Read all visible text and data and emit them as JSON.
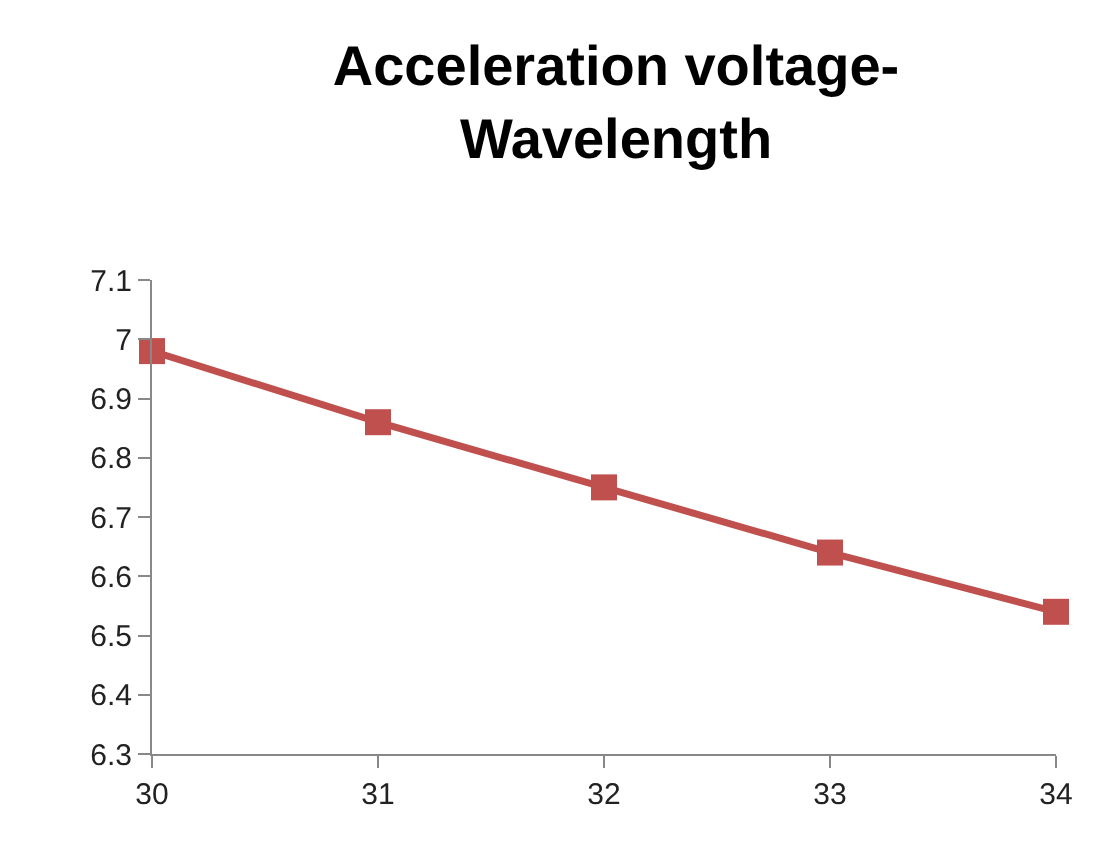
{
  "chart_data": {
    "type": "line",
    "title": "Acceleration voltage-\nWavelength",
    "x": [
      30,
      31,
      32,
      33,
      34
    ],
    "series": [
      {
        "color": "#c0504d",
        "values": [
          6.98,
          6.86,
          6.75,
          6.64,
          6.54
        ]
      }
    ],
    "xlim": [
      30,
      34
    ],
    "xticks": [
      30,
      31,
      32,
      33,
      34
    ],
    "ylim": [
      6.3,
      7.1
    ],
    "yticks": [
      {
        "value": 6.3,
        "label": "6.3"
      },
      {
        "value": 6.4,
        "label": "6.4"
      },
      {
        "value": 6.5,
        "label": "6.5"
      },
      {
        "value": 6.6,
        "label": "6.6"
      },
      {
        "value": 6.7,
        "label": "6.7"
      },
      {
        "value": 6.8,
        "label": "6.8"
      },
      {
        "value": 6.9,
        "label": "6.9"
      },
      {
        "value": 7,
        "label": "7"
      },
      {
        "value": 7.1,
        "label": "7.1"
      }
    ],
    "legend": false,
    "marker": "square",
    "line_style": "solid"
  }
}
